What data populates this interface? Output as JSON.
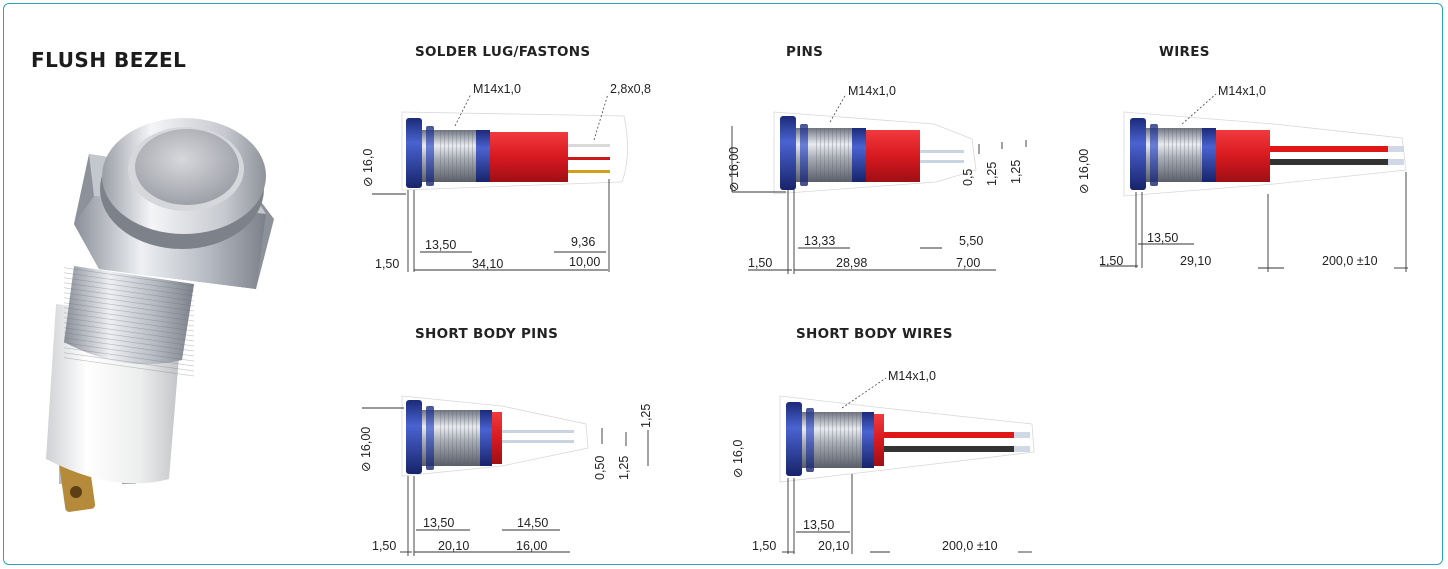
{
  "title": "FLUSH BEZEL",
  "colors": {
    "frame": "#2aa6b4",
    "body_red": "#d81920",
    "metal": "#b8bcc4",
    "flange_blue": "#2a3c9c"
  },
  "sections": {
    "solder_lug": {
      "heading": "SOLDER LUG/FASTONS",
      "thread": "M14x1,0",
      "lug": "2,8x0,8",
      "diameter": "⊘ 16,0",
      "d1": "13,50",
      "d2": "1,50",
      "d3": "34,10",
      "d4": "9,36",
      "d5": "10,00"
    },
    "pins": {
      "heading": "PINS",
      "thread": "M14x1,0",
      "diameter": "⊘ 16,00",
      "d1": "13,33",
      "d2": "1,50",
      "d3": "28,98",
      "d4": "5,50",
      "d5": "7,00",
      "v1": "0,5",
      "v2": "1,25",
      "v3": "1,25"
    },
    "wires": {
      "heading": "WIRES",
      "thread": "M14x1,0",
      "diameter": "⊘ 16,00",
      "d1": "13,50",
      "d2": "1,50",
      "d3": "29,10",
      "d4": "200,0 ±10"
    },
    "short_pins": {
      "heading": "SHORT BODY PINS",
      "diameter": "⊘ 16,00",
      "d1": "13,50",
      "d2": "1,50",
      "d3": "20,10",
      "d4": "14,50",
      "d5": "16,00",
      "v1": "0,50",
      "v2": "1,25",
      "v3": "1,25"
    },
    "short_wires": {
      "heading": "SHORT BODY WIRES",
      "thread": "M14x1,0",
      "diameter": "⊘ 16,0",
      "d1": "13,50",
      "d2": "1,50",
      "d3": "20,10",
      "d4": "200,0 ±10"
    }
  }
}
